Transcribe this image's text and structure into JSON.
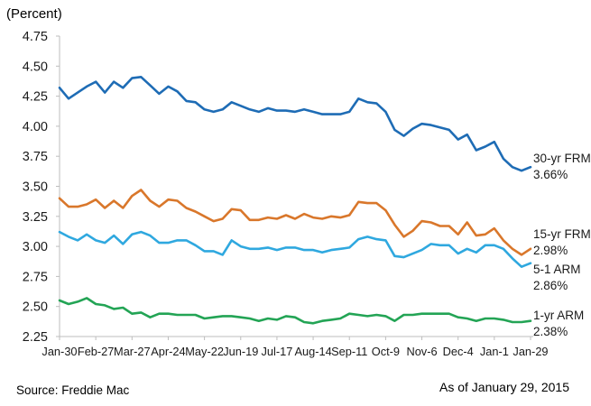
{
  "title": "(Percent)",
  "footer": {
    "source": "Source: Freddie Mac",
    "as_of": "As of January 29, 2015"
  },
  "colors": {
    "axis": "#BDBDBD",
    "text": "#1A1A1A"
  },
  "chart_data": {
    "type": "line",
    "title": "(Percent)",
    "xlabel": "",
    "ylabel": "Percent",
    "ylim": [
      2.25,
      4.75
    ],
    "y_tick_step": 0.25,
    "grid": false,
    "legend_position": "right-of-line-ends",
    "x": [
      "Jan-30",
      "Feb-6",
      "Feb-13",
      "Feb-20",
      "Feb-27",
      "Mar-6",
      "Mar-13",
      "Mar-20",
      "Mar-27",
      "Apr-3",
      "Apr-10",
      "Apr-17",
      "Apr-24",
      "May-1",
      "May-8",
      "May-15",
      "May-22",
      "May-29",
      "Jun-5",
      "Jun-12",
      "Jun-19",
      "Jun-26",
      "Jul-3",
      "Jul-10",
      "Jul-17",
      "Jul-24",
      "Jul-31",
      "Aug-7",
      "Aug-14",
      "Aug-21",
      "Aug-28",
      "Sep-4",
      "Sep-11",
      "Sep-18",
      "Sep-25",
      "Oct-2",
      "Oct-9",
      "Oct-16",
      "Oct-23",
      "Oct-30",
      "Nov-6",
      "Nov-13",
      "Nov-20",
      "Nov-26",
      "Dec-4",
      "Dec-11",
      "Dec-18",
      "Dec-25",
      "Jan-1",
      "Jan-8",
      "Jan-15",
      "Jan-22",
      "Jan-29"
    ],
    "x_tick_indices": [
      0,
      4,
      8,
      12,
      16,
      20,
      24,
      28,
      32,
      36,
      40,
      44,
      48,
      52
    ],
    "x_tick_labels": [
      "Jan-30",
      "Feb-27",
      "Mar-27",
      "Apr-24",
      "May-22",
      "Jun-19",
      "Jul-17",
      "Aug-14",
      "Sep-11",
      "Oct-9",
      "Nov-6",
      "Dec-4",
      "Jan-1",
      "Jan-29"
    ],
    "series": [
      {
        "name": "30-yr FRM",
        "end_value_label": "3.66%",
        "color": "#1E6CB5",
        "values": [
          4.32,
          4.23,
          4.28,
          4.33,
          4.37,
          4.28,
          4.37,
          4.32,
          4.4,
          4.41,
          4.34,
          4.27,
          4.33,
          4.29,
          4.21,
          4.2,
          4.14,
          4.12,
          4.14,
          4.2,
          4.17,
          4.14,
          4.12,
          4.15,
          4.13,
          4.13,
          4.12,
          4.14,
          4.12,
          4.1,
          4.1,
          4.1,
          4.12,
          4.23,
          4.2,
          4.19,
          4.12,
          3.97,
          3.92,
          3.98,
          4.02,
          4.01,
          3.99,
          3.97,
          3.89,
          3.93,
          3.8,
          3.83,
          3.87,
          3.73,
          3.66,
          3.63,
          3.66
        ]
      },
      {
        "name": "15-yr FRM",
        "end_value_label": "2.98%",
        "color": "#D9772B",
        "values": [
          3.4,
          3.33,
          3.33,
          3.35,
          3.39,
          3.32,
          3.38,
          3.32,
          3.42,
          3.47,
          3.38,
          3.33,
          3.39,
          3.38,
          3.32,
          3.29,
          3.25,
          3.21,
          3.23,
          3.31,
          3.3,
          3.22,
          3.22,
          3.24,
          3.23,
          3.26,
          3.23,
          3.27,
          3.24,
          3.23,
          3.25,
          3.24,
          3.26,
          3.37,
          3.36,
          3.36,
          3.3,
          3.18,
          3.08,
          3.13,
          3.21,
          3.2,
          3.17,
          3.17,
          3.1,
          3.2,
          3.09,
          3.1,
          3.15,
          3.05,
          2.98,
          2.93,
          2.98
        ]
      },
      {
        "name": "5-1 ARM",
        "end_value_label": "2.86%",
        "color": "#2FA8DF",
        "values": [
          3.12,
          3.08,
          3.05,
          3.1,
          3.05,
          3.03,
          3.09,
          3.02,
          3.1,
          3.12,
          3.09,
          3.03,
          3.03,
          3.05,
          3.05,
          3.01,
          2.96,
          2.96,
          2.93,
          3.05,
          3.0,
          2.98,
          2.98,
          2.99,
          2.97,
          2.99,
          2.99,
          2.97,
          2.97,
          2.95,
          2.97,
          2.98,
          2.99,
          3.06,
          3.08,
          3.06,
          3.05,
          2.92,
          2.91,
          2.94,
          2.97,
          3.02,
          3.01,
          3.01,
          2.94,
          2.98,
          2.95,
          3.01,
          3.01,
          2.98,
          2.9,
          2.83,
          2.86
        ]
      },
      {
        "name": "1-yr ARM",
        "end_value_label": "2.38%",
        "color": "#23A455",
        "values": [
          2.55,
          2.52,
          2.54,
          2.57,
          2.52,
          2.51,
          2.48,
          2.49,
          2.44,
          2.45,
          2.41,
          2.44,
          2.44,
          2.43,
          2.43,
          2.43,
          2.4,
          2.41,
          2.42,
          2.42,
          2.41,
          2.4,
          2.38,
          2.4,
          2.39,
          2.42,
          2.41,
          2.37,
          2.36,
          2.38,
          2.39,
          2.4,
          2.44,
          2.43,
          2.42,
          2.43,
          2.42,
          2.38,
          2.43,
          2.43,
          2.44,
          2.44,
          2.44,
          2.44,
          2.41,
          2.4,
          2.38,
          2.4,
          2.4,
          2.39,
          2.37,
          2.37,
          2.38
        ]
      }
    ]
  }
}
